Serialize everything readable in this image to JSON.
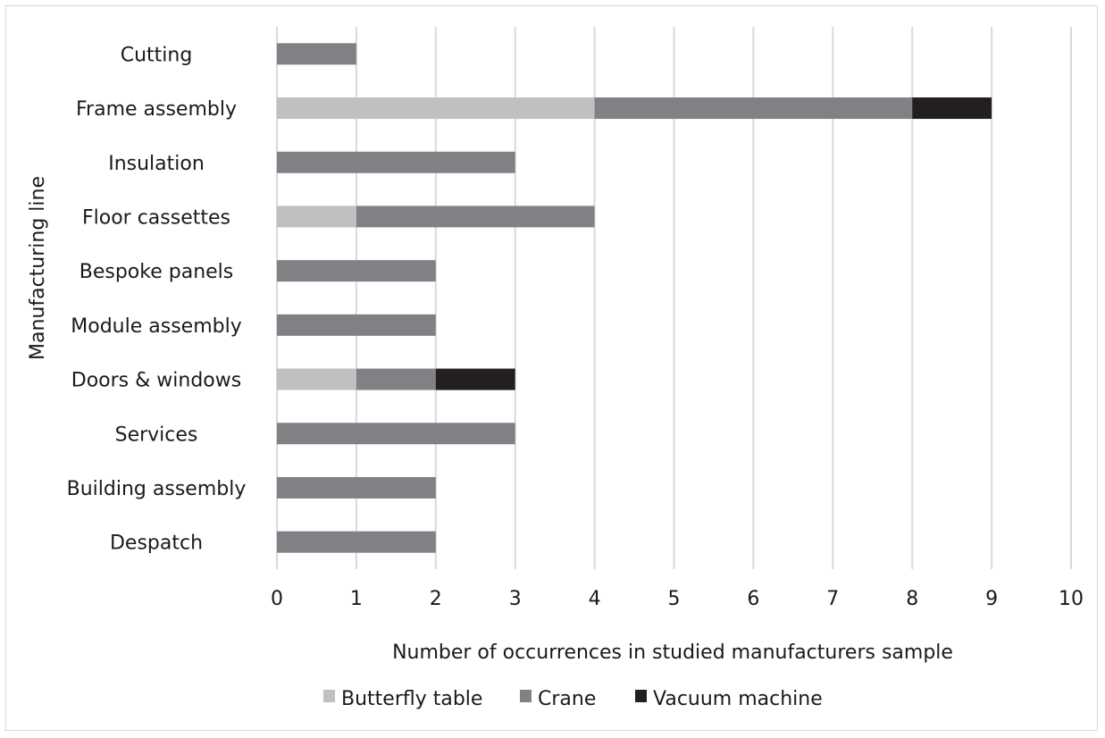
{
  "chart_data": {
    "type": "bar",
    "orientation": "horizontal",
    "stacked": true,
    "categories": [
      "Cutting",
      "Frame assembly",
      "Insulation",
      "Floor cassettes",
      "Bespoke panels",
      "Module assembly",
      "Doors & windows",
      "Services",
      "Building assembly",
      "Despatch"
    ],
    "series": [
      {
        "name": "Butterfly table",
        "color": "#bfc0c2",
        "values": [
          0,
          4,
          0,
          1,
          0,
          0,
          1,
          0,
          0,
          0
        ]
      },
      {
        "name": "Crane",
        "color": "#808184",
        "values": [
          1,
          4,
          3,
          3,
          2,
          2,
          1,
          3,
          2,
          2
        ]
      },
      {
        "name": "Vacuum machine",
        "color": "#231f20",
        "values": [
          0,
          1,
          0,
          0,
          0,
          0,
          1,
          0,
          0,
          0
        ]
      }
    ],
    "xlim": [
      0,
      10
    ],
    "x_ticks": [
      "0",
      "1",
      "2",
      "3",
      "4",
      "5",
      "6",
      "7",
      "8",
      "9",
      "10"
    ],
    "xlabel": "Number of occurrences in studied manufacturers sample",
    "ylabel": "Manufacturing line",
    "grid": "vertical",
    "legend_position": "bottom"
  }
}
